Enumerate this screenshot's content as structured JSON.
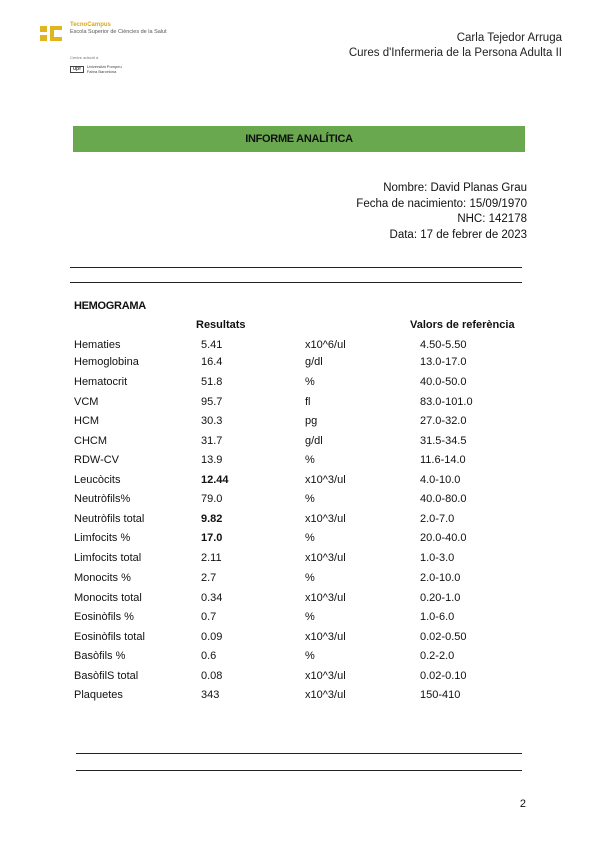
{
  "logo": {
    "brand": "TecnoCampus",
    "subtitle": "Escola Superior de Ciències de la Salut",
    "adscrit": "Centre adscrit a",
    "university_mark": "upf",
    "university": "Universitat Pompeu Fabra Barcelona",
    "brand_color": "#e0b520"
  },
  "header": {
    "author": "Carla Tejedor Arruga",
    "course": "Cures d'Infermeria de la Persona Adulta II"
  },
  "title_band": {
    "title": "INFORME ANALÍTICA",
    "color": "#6aa84f"
  },
  "patient": {
    "name": "Nombre: David Planas Grau",
    "dob": "Fecha de nacimiento: 15/09/1970",
    "nhc": "NHC: 142178",
    "date": "Data: 17 de febrer de 2023"
  },
  "hemograma": {
    "section_title": "HEMOGRAMA",
    "col_results": "Resultats",
    "col_reference": "Valors de referència",
    "rows": [
      {
        "name": "Hematies",
        "value": "5.41",
        "unit": "x10^6/ul",
        "ref": "4.50-5.50",
        "bold": false
      },
      {
        "name": "Hemoglobina",
        "value": "16.4",
        "unit": "g/dl",
        "ref": "13.0-17.0",
        "bold": false
      },
      {
        "name": "Hematocrit",
        "value": "51.8",
        "unit": "%",
        "ref": "40.0-50.0",
        "bold": false
      },
      {
        "name": "VCM",
        "value": "95.7",
        "unit": "fl",
        "ref": "83.0-101.0",
        "bold": false
      },
      {
        "name": "HCM",
        "value": "30.3",
        "unit": "pg",
        "ref": "27.0-32.0",
        "bold": false
      },
      {
        "name": "CHCM",
        "value": "31.7",
        "unit": "g/dl",
        "ref": "31.5-34.5",
        "bold": false
      },
      {
        "name": "RDW-CV",
        "value": "13.9",
        "unit": "%",
        "ref": "11.6-14.0",
        "bold": false
      },
      {
        "name": "Leucòcits",
        "value": "12.44",
        "unit": "x10^3/ul",
        "ref": "4.0-10.0",
        "bold": true
      },
      {
        "name": "Neutròfils%",
        "value": "79.0",
        "unit": "%",
        "ref": "40.0-80.0",
        "bold": false
      },
      {
        "name": "Neutròfils total",
        "value": "9.82",
        "unit": "x10^3/ul",
        "ref": "2.0-7.0",
        "bold": true
      },
      {
        "name": "Limfocits %",
        "value": "17.0",
        "unit": "%",
        "ref": "20.0-40.0",
        "bold": true
      },
      {
        "name": "Limfocits total",
        "value": "2.11",
        "unit": "x10^3/ul",
        "ref": "1.0-3.0",
        "bold": false
      },
      {
        "name": "Monocits %",
        "value": "2.7",
        "unit": "%",
        "ref": "2.0-10.0",
        "bold": false
      },
      {
        "name": "Monocits total",
        "value": "0.34",
        "unit": "x10^3/ul",
        "ref": "0.20-1.0",
        "bold": false
      },
      {
        "name": "Eosinòfils %",
        "value": "0.7",
        "unit": "%",
        "ref": "1.0-6.0",
        "bold": false
      },
      {
        "name": "Eosinòfils total",
        "value": "0.09",
        "unit": "x10^3/ul",
        "ref": "0.02-0.50",
        "bold": false
      },
      {
        "name": "Basòfils %",
        "value": "0.6",
        "unit": "%",
        "ref": "0.2-2.0",
        "bold": false
      },
      {
        "name": "BasòfilS total",
        "value": "0.08",
        "unit": "x10^3/ul",
        "ref": "0.02-0.10",
        "bold": false
      },
      {
        "name": "Plaquetes",
        "value": "343",
        "unit": "x10^3/ul",
        "ref": "150-410",
        "bold": false
      }
    ]
  },
  "page_number": "2"
}
